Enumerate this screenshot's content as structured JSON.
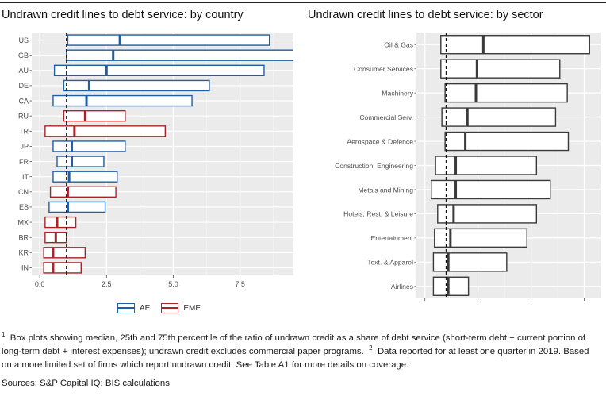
{
  "chart_data": [
    {
      "type": "boxplot",
      "title": "Undrawn credit lines to debt service: by country",
      "orientation": "horizontal",
      "xlim": [
        -0.3,
        9.5
      ],
      "xticks": [
        0,
        2.5,
        5,
        7.5
      ],
      "xtick_labels": [
        "0.0",
        "2.5",
        "5.0",
        "7.5"
      ],
      "reference_line": 1.0,
      "grid": true,
      "legend_placement": "bottom",
      "groups": [
        {
          "name": "AE",
          "color": "#1f5fa5"
        },
        {
          "name": "EME",
          "color": "#a8232a"
        }
      ],
      "categories": [
        "US",
        "GB",
        "AU",
        "DE",
        "CA",
        "RU",
        "TR",
        "JP",
        "FR",
        "IT",
        "CN",
        "ES",
        "MX",
        "BR",
        "KR",
        "IN"
      ],
      "boxes": [
        {
          "label": "US",
          "group": "AE",
          "q1": 1.05,
          "median": 3.0,
          "q3": 8.6
        },
        {
          "label": "GB",
          "group": "AE",
          "q1": 1.0,
          "median": 2.75,
          "q3": 9.5
        },
        {
          "label": "AU",
          "group": "AE",
          "q1": 0.55,
          "median": 2.5,
          "q3": 8.4
        },
        {
          "label": "DE",
          "group": "AE",
          "q1": 0.9,
          "median": 1.85,
          "q3": 6.35
        },
        {
          "label": "CA",
          "group": "AE",
          "q1": 0.5,
          "median": 1.75,
          "q3": 5.7
        },
        {
          "label": "RU",
          "group": "EME",
          "q1": 0.9,
          "median": 1.7,
          "q3": 3.2
        },
        {
          "label": "TR",
          "group": "EME",
          "q1": 0.2,
          "median": 1.3,
          "q3": 4.7
        },
        {
          "label": "JP",
          "group": "AE",
          "q1": 0.5,
          "median": 1.2,
          "q3": 3.2
        },
        {
          "label": "FR",
          "group": "AE",
          "q1": 0.65,
          "median": 1.2,
          "q3": 2.4
        },
        {
          "label": "IT",
          "group": "AE",
          "q1": 0.5,
          "median": 1.1,
          "q3": 2.9
        },
        {
          "label": "CN",
          "group": "EME",
          "q1": 0.4,
          "median": 1.05,
          "q3": 2.85
        },
        {
          "label": "ES",
          "group": "AE",
          "q1": 0.35,
          "median": 1.05,
          "q3": 2.45
        },
        {
          "label": "MX",
          "group": "EME",
          "q1": 0.2,
          "median": 0.65,
          "q3": 1.35
        },
        {
          "label": "BR",
          "group": "EME",
          "q1": 0.2,
          "median": 0.6,
          "q3": 1.0
        },
        {
          "label": "KR",
          "group": "EME",
          "q1": 0.15,
          "median": 0.5,
          "q3": 1.7
        },
        {
          "label": "IN",
          "group": "EME",
          "q1": 0.15,
          "median": 0.5,
          "q3": 1.55
        }
      ]
    },
    {
      "type": "boxplot",
      "title": "Undrawn credit lines to debt service: by sector",
      "orientation": "horizontal",
      "xlim": [
        -0.4,
        8.3
      ],
      "xticks": [
        0,
        2.5,
        5,
        7.5
      ],
      "xtick_labels": [
        "0.0",
        "2.5",
        "5.0",
        "7.5"
      ],
      "reference_line": 1.0,
      "grid": true,
      "color": "#3a3a3a",
      "categories": [
        "Oil & Gas",
        "Consumer Services",
        "Machinery",
        "Commercial Serv.",
        "Aerospace & Defence",
        "Construction, Engineering",
        "Metals and Mining",
        "Hotels, Rest. & Leisure",
        "Entertainment",
        "Text. & Apparel",
        "Airlines"
      ],
      "boxes": [
        {
          "label": "Oil & Gas",
          "q1": 0.75,
          "median": 2.75,
          "q3": 7.75
        },
        {
          "label": "Consumer Services",
          "q1": 0.75,
          "median": 2.45,
          "q3": 6.35
        },
        {
          "label": "Machinery",
          "q1": 0.95,
          "median": 2.4,
          "q3": 6.7
        },
        {
          "label": "Commercial Serv.",
          "q1": 0.8,
          "median": 2.0,
          "q3": 6.15
        },
        {
          "label": "Aerospace & Defence",
          "q1": 0.95,
          "median": 1.9,
          "q3": 6.75
        },
        {
          "label": "Construction, Engineering",
          "q1": 0.5,
          "median": 1.45,
          "q3": 5.25
        },
        {
          "label": "Metals and Mining",
          "q1": 0.3,
          "median": 1.45,
          "q3": 5.9
        },
        {
          "label": "Hotels, Rest. & Leisure",
          "q1": 0.6,
          "median": 1.35,
          "q3": 5.25
        },
        {
          "label": "Entertainment",
          "q1": 0.45,
          "median": 1.2,
          "q3": 4.8
        },
        {
          "label": "Text. & Apparel",
          "q1": 0.4,
          "median": 1.1,
          "q3": 3.85
        },
        {
          "label": "Airlines",
          "q1": 0.4,
          "median": 1.1,
          "q3": 2.05
        }
      ]
    }
  ],
  "legend": [
    {
      "label": "AE",
      "color": "#1f5fa5"
    },
    {
      "label": "EME",
      "color": "#a8232a"
    }
  ],
  "footnotes": {
    "marker1": "1",
    "text1": "Box plots showing median, 25th and 75th percentile of the ratio of undrawn credit as a share of debt service (short-term debt + current portion of long-term debt + interest expenses); undrawn credit excludes commercial paper programs.",
    "marker2": "2",
    "text2": "Data reported for at least one quarter in 2019. Based on a more limited set of firms which report undrawn credit. See Table A1 for more details on coverage.",
    "sources": "Sources: S&P Capital IQ; BIS calculations."
  }
}
